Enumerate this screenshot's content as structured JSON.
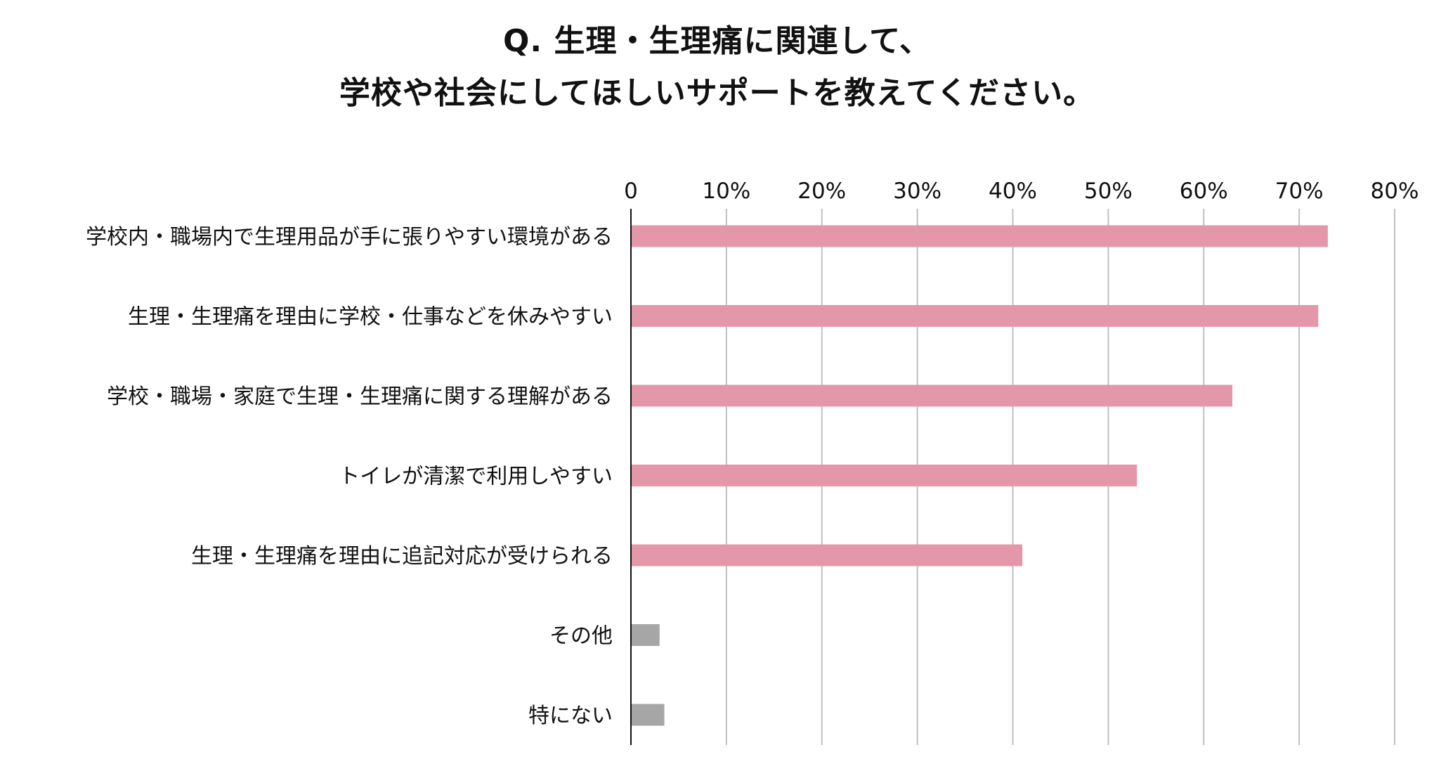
{
  "title_lines": [
    "Q. 生理・生理痛に関連して、",
    "学校や社会にしてほしいサポートを教えてください。"
  ],
  "colors": {
    "primary_bar": "#e597aa",
    "other_bar": "#a6a6a6",
    "gridline": "#bfbfbf",
    "axis": "#111111"
  },
  "chart_data": {
    "type": "bar",
    "orientation": "horizontal",
    "categories": [
      "学校内・職場内で生理用品が手に張りやすい環境がある",
      "生理・生理痛を理由に学校・仕事などを休みやすい",
      "学校・職場・家庭で生理・生理痛に関する理解がある",
      "トイレが清潔で利用しやすい",
      "生理・生理痛を理由に追記対応が受けられる",
      "その他",
      "特にない"
    ],
    "values": [
      73,
      72,
      63,
      53,
      41,
      3,
      3.5
    ],
    "bar_colors": [
      "primary",
      "primary",
      "primary",
      "primary",
      "primary",
      "other",
      "other"
    ],
    "xlim": [
      0,
      80
    ],
    "xticks": [
      0,
      10,
      20,
      30,
      40,
      50,
      60,
      70,
      80
    ],
    "xtick_labels": [
      "0",
      "10%",
      "20%",
      "30%",
      "40%",
      "50%",
      "60%",
      "70%",
      "80%"
    ],
    "xlabel": "",
    "ylabel": "",
    "grid": "vertical",
    "axis_position": "top",
    "legend": null
  }
}
